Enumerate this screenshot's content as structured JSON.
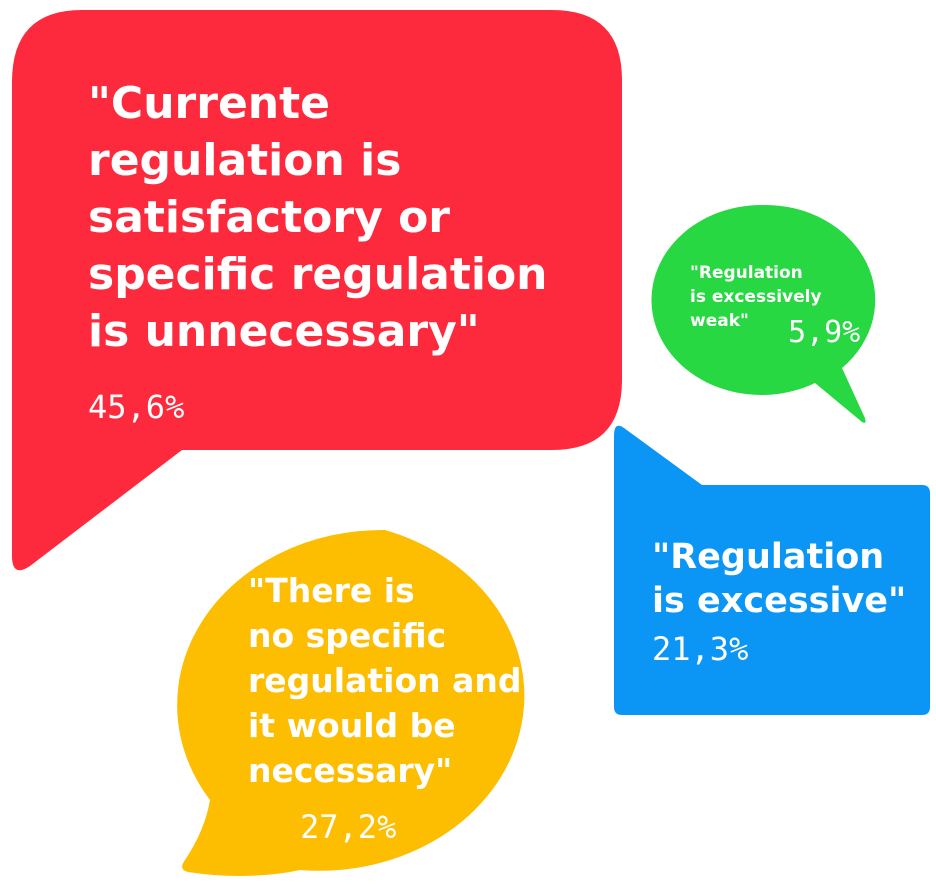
{
  "bubbles": [
    {
      "lines": [
        "\"Currente",
        "regulation is",
        "satisfactory or",
        "specific regulation",
        "is unnecessary\""
      ],
      "value": "45,6%"
    },
    {
      "lines": [
        "\"Regulation",
        "is excessively",
        "weak\""
      ],
      "value": "5,9%"
    },
    {
      "lines": [
        "\"Regulation",
        "is excessive\""
      ],
      "value": "21,3%"
    },
    {
      "lines": [
        "\"There is",
        "no specific",
        "regulation and",
        "it would be",
        "necessary\""
      ],
      "value": "27,2%"
    }
  ]
}
